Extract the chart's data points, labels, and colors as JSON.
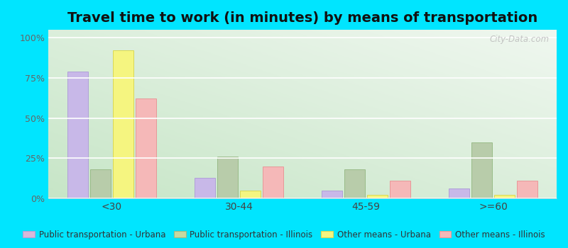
{
  "title": "Travel time to work (in minutes) by means of transportation",
  "categories": [
    "<30",
    "30-44",
    "45-59",
    ">=60"
  ],
  "series": {
    "Public transportation - Urbana": [
      79,
      13,
      5,
      6
    ],
    "Public transportation - Illinois": [
      18,
      26,
      18,
      35
    ],
    "Other means - Urbana": [
      92,
      5,
      2,
      2
    ],
    "Other means - Illinois": [
      62,
      20,
      11,
      11
    ]
  },
  "colors": {
    "Public transportation - Urbana": "#c8b8e8",
    "Public transportation - Illinois": "#b8ccaa",
    "Other means - Urbana": "#f5f580",
    "Other means - Illinois": "#f5b8b8"
  },
  "bar_edge_colors": {
    "Public transportation - Urbana": "#b0a0d8",
    "Public transportation - Illinois": "#99bb88",
    "Other means - Urbana": "#d8d855",
    "Other means - Illinois": "#e89898"
  },
  "legend_colors": {
    "Public transportation - Urbana": "#d8b8d8",
    "Public transportation - Illinois": "#c8d8a0",
    "Other means - Urbana": "#f5f580",
    "Other means - Illinois": "#f5b8b8"
  },
  "ylim": [
    0,
    105
  ],
  "yticks": [
    0,
    25,
    50,
    75,
    100
  ],
  "ytick_labels": [
    "0%",
    "25%",
    "50%",
    "75%",
    "100%"
  ],
  "background_color_topleft": "#d8f0d0",
  "background_color_bottomright": "#f0faf8",
  "outer_background": "#00e5ff",
  "watermark": "City-Data.com",
  "title_fontsize": 14,
  "legend_fontsize": 8.5
}
